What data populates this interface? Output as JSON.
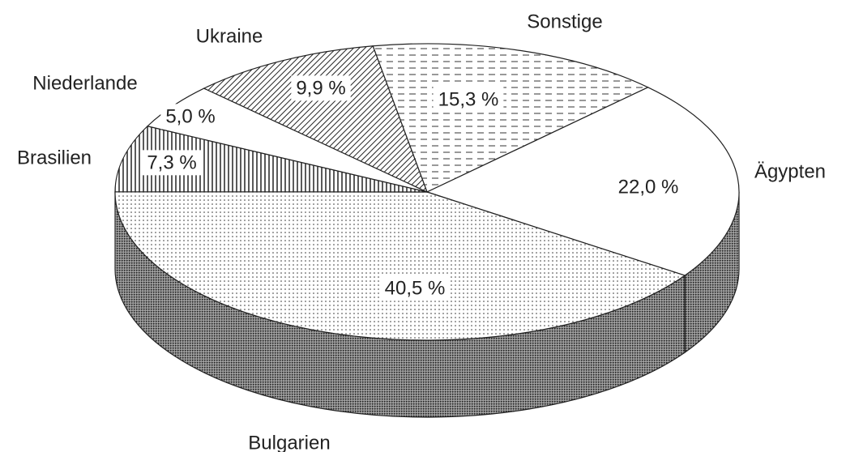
{
  "chart_data": {
    "type": "pie",
    "categories": [
      "Sonstige",
      "Ägypten",
      "Bulgarien",
      "Brasilien",
      "Niederlande",
      "Ukraine"
    ],
    "values": [
      15.3,
      22.0,
      40.5,
      7.3,
      5.0,
      9.9
    ],
    "value_labels": [
      "15,3 %",
      "22,0 %",
      "40,5 %",
      "7,3 %",
      "5,0 %",
      "9,9 %"
    ]
  }
}
